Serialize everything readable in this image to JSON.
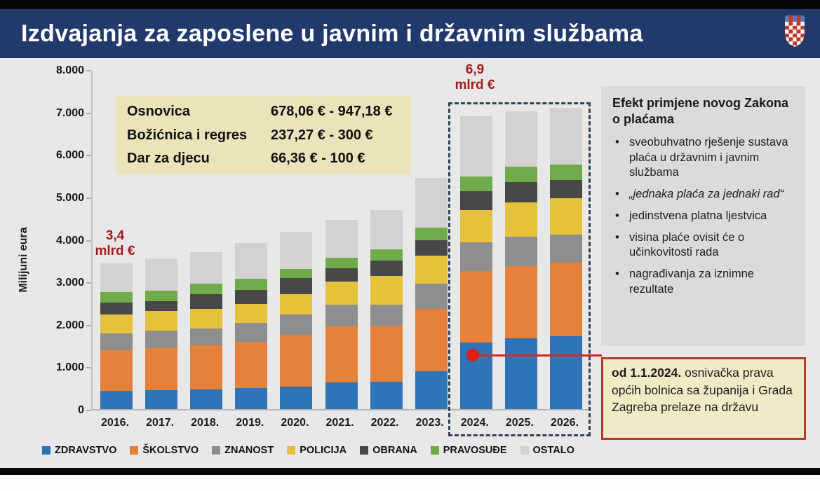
{
  "title": "Izdvajanja za zaposlene u javnim i državnim službama",
  "info_box": {
    "rows": [
      {
        "label": "Osnovica",
        "value": "678,06 € - 947,18 €"
      },
      {
        "label": "Božićnica i regres",
        "value": "237,27 € - 300 €"
      },
      {
        "label": "Dar za djecu",
        "value": "66,36 € - 100 €"
      }
    ]
  },
  "side_panel": {
    "heading": "Efekt primjene novog Zakona o plaćama",
    "bullets": [
      {
        "text": "sveobuhvatno rješenje sustava plaća u državnim i javnim službama",
        "italic": false
      },
      {
        "text": "„jednaka plaća za jednaki rad“",
        "italic": true
      },
      {
        "text": "jedinstvena platna ljestvica",
        "italic": false
      },
      {
        "text": "visina plaće ovisit će o učinkovitosti rada",
        "italic": false
      },
      {
        "text": "nagrađivanja za iznimne rezultate",
        "italic": false
      }
    ]
  },
  "note_box": {
    "bold_text": "od 1.1.2024.",
    "text": " osnivačka prava općih bolnica sa županija i Grada Zagreba prelaze na državu"
  },
  "chart_data": {
    "type": "bar",
    "stacked": true,
    "ylabel": "Milijuni eura",
    "ylim": [
      0,
      8000
    ],
    "ytick_step": 1000,
    "grid": false,
    "legend_position": "bottom",
    "categories": [
      "2016.",
      "2017.",
      "2018.",
      "2019.",
      "2020.",
      "2021.",
      "2022.",
      "2023.",
      "2024.",
      "2025.",
      "2026."
    ],
    "series": [
      {
        "name": "ZDRAVSTVO",
        "color": "#2e74b6",
        "values": [
          430,
          440,
          460,
          500,
          530,
          630,
          650,
          890,
          1570,
          1670,
          1720
        ]
      },
      {
        "name": "ŠKOLSTVO",
        "color": "#e5813a",
        "values": [
          960,
          1000,
          1040,
          1080,
          1220,
          1320,
          1310,
          1470,
          1680,
          1700,
          1730
        ]
      },
      {
        "name": "ZNANOST",
        "color": "#8e8e8e",
        "values": [
          390,
          410,
          390,
          450,
          470,
          500,
          500,
          590,
          670,
          690,
          660
        ]
      },
      {
        "name": "POLICIJA",
        "color": "#e6c13c",
        "values": [
          450,
          460,
          470,
          450,
          490,
          560,
          680,
          660,
          760,
          800,
          850
        ]
      },
      {
        "name": "OBRANA",
        "color": "#484848",
        "values": [
          270,
          230,
          340,
          330,
          370,
          300,
          350,
          360,
          450,
          480,
          440
        ]
      },
      {
        "name": "PRAVOSUĐE",
        "color": "#70ab4a",
        "values": [
          250,
          250,
          250,
          260,
          220,
          260,
          270,
          300,
          340,
          360,
          360
        ]
      },
      {
        "name": "OSTALO",
        "color": "#d3d1d1",
        "values": [
          680,
          760,
          750,
          840,
          880,
          890,
          930,
          1170,
          1430,
          1310,
          1340
        ]
      }
    ],
    "totals": [
      3430,
      3550,
      3700,
      3910,
      4180,
      4460,
      4690,
      5440,
      6900,
      7010,
      7100
    ],
    "bar_labels": [
      {
        "category": "2016.",
        "line1": "3,4",
        "line2": "mlrd €"
      },
      {
        "category": "2024.",
        "line1": "6,9",
        "line2": "mlrd €"
      }
    ],
    "highlight_group": [
      "2024.",
      "2025.",
      "2026."
    ]
  }
}
